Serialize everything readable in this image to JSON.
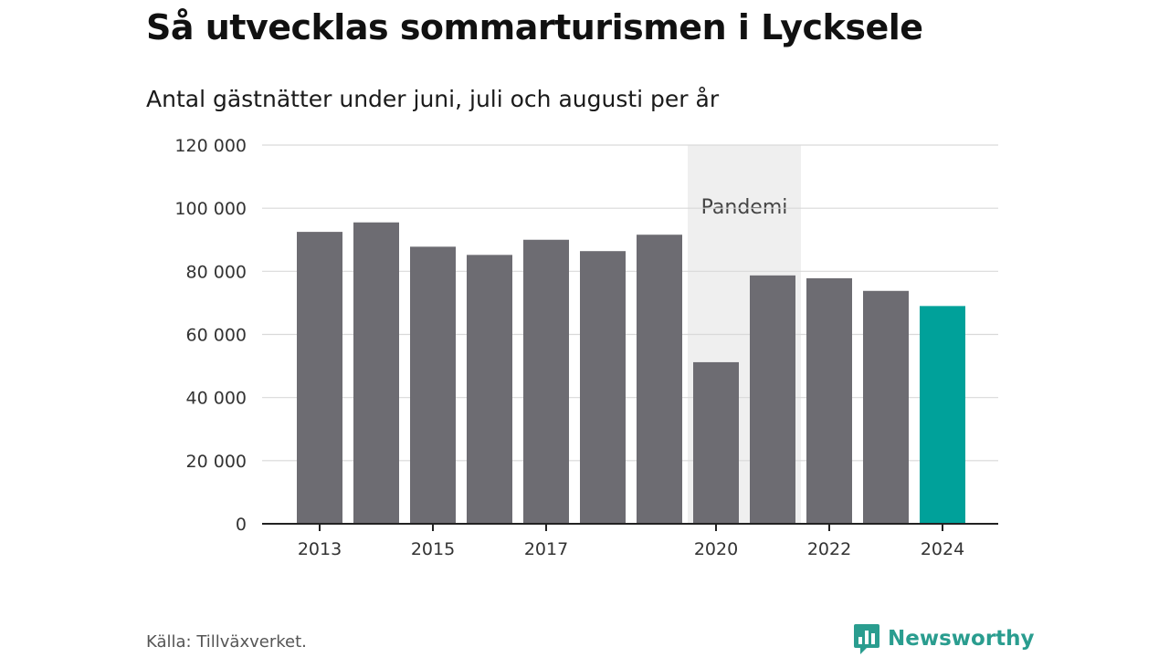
{
  "chart_data": {
    "type": "bar",
    "title": "Så utvecklas sommarturismen i Lycksele",
    "subtitle": "Antal gästnätter under juni, juli och augusti per år",
    "x": [
      2013,
      2014,
      2015,
      2016,
      2017,
      2018,
      2019,
      2020,
      2021,
      2022,
      2023,
      2024
    ],
    "values": [
      92500,
      95500,
      87800,
      85200,
      90000,
      86400,
      91600,
      51200,
      78700,
      77800,
      73800,
      69000
    ],
    "x_tick_labels": [
      "2013",
      "2015",
      "2017",
      "2020",
      "2022",
      "2024"
    ],
    "y_tick_labels": [
      "0",
      "20 000",
      "40 000",
      "60 000",
      "80 000",
      "100 000",
      "120 000"
    ],
    "ylim": [
      0,
      120000
    ],
    "y_ticks": [
      0,
      20000,
      40000,
      60000,
      80000,
      100000,
      120000
    ],
    "grid": true,
    "bar_color": "#6d6c72",
    "highlight_color": "#00a19a",
    "highlight_x": 2024,
    "band": {
      "label": "Pandemi",
      "from": 2020,
      "to": 2021,
      "color": "#efefef"
    },
    "xlabel": "",
    "ylabel": ""
  },
  "footer": {
    "source": "Källa: Tillväxverket.",
    "brand": "Newsworthy",
    "brand_icon": "newsworthy-logo-icon",
    "brand_color": "#2a9d8f"
  }
}
